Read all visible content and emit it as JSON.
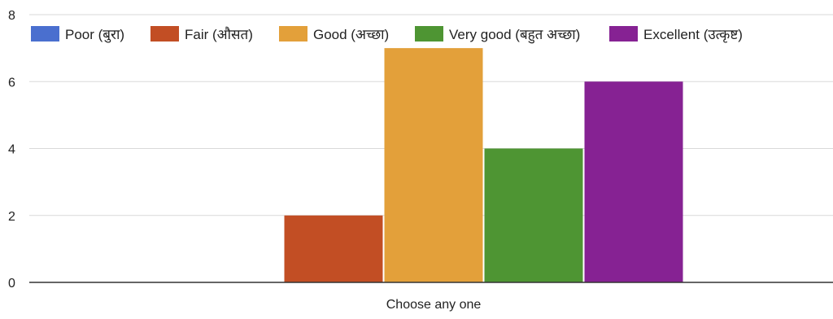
{
  "chart_data": {
    "type": "bar",
    "title": "",
    "xlabel": "Choose any one",
    "ylabel": "",
    "categories": [
      "Choose any one"
    ],
    "series": [
      {
        "name": "Poor (बुरा)",
        "color": "#4a6fcf",
        "values": [
          0
        ]
      },
      {
        "name": "Fair (औसत)",
        "color": "#c24e24",
        "values": [
          2
        ]
      },
      {
        "name": "Good (अच्छा)",
        "color": "#e3a03a",
        "values": [
          7
        ]
      },
      {
        "name": "Very good (बहुत अच्छा)",
        "color": "#4e9533",
        "values": [
          4
        ]
      },
      {
        "name": "Excellent (उत्कृष्ट)",
        "color": "#862293",
        "values": [
          6
        ]
      }
    ],
    "ylim": [
      0,
      8
    ],
    "yticks": [
      0,
      2,
      4,
      6,
      8
    ],
    "grid": true,
    "legend_position": "top"
  }
}
